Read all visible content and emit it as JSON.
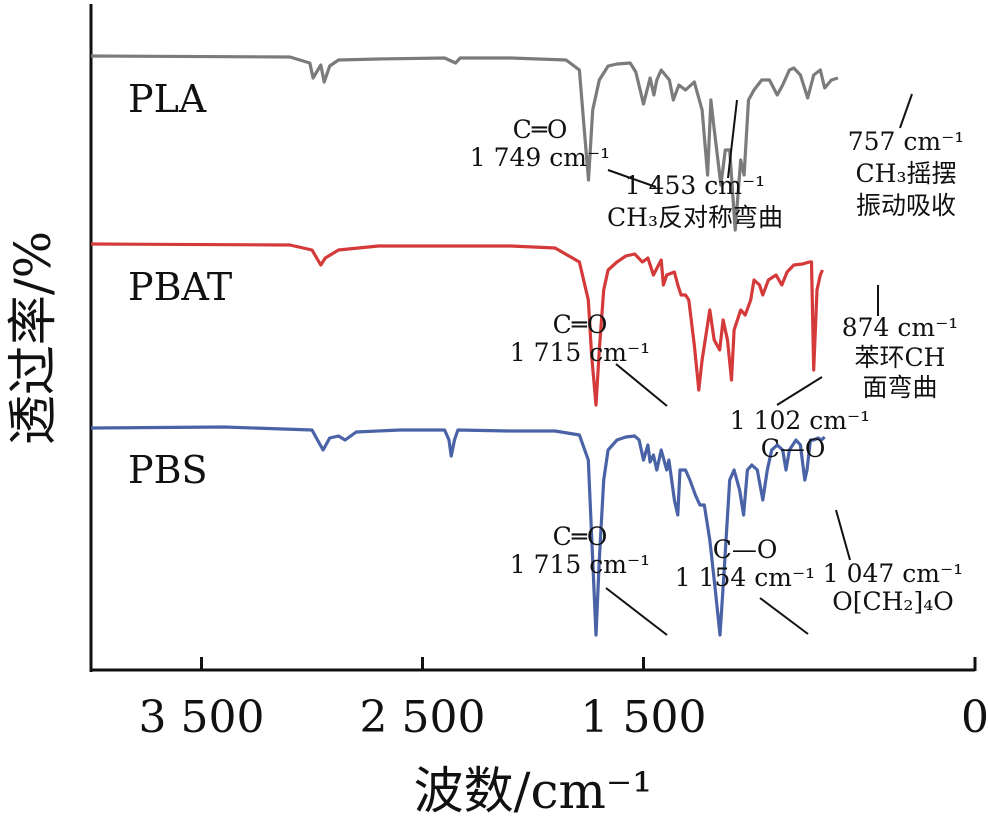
{
  "chart_data": {
    "type": "line",
    "xlabel": "波数/cm⁻¹",
    "ylabel": "透过率/%",
    "xlim": [
      4000,
      0
    ],
    "x_ticks": [
      3500,
      2500,
      1500,
      0
    ],
    "x_tick_labels": [
      "3 500",
      "2 500",
      "1 500",
      "0"
    ],
    "grid": false,
    "legend": "none",
    "series": [
      {
        "name": "PLA",
        "color": "#7b7b7b",
        "offset": 0,
        "points": [
          [
            4000,
            56
          ],
          [
            3100,
            57
          ],
          [
            3010,
            63
          ],
          [
            2995,
            78
          ],
          [
            2960,
            65
          ],
          [
            2945,
            82
          ],
          [
            2920,
            66
          ],
          [
            2880,
            60
          ],
          [
            2700,
            59
          ],
          [
            2400,
            58
          ],
          [
            2350,
            63
          ],
          [
            2330,
            58
          ],
          [
            2100,
            58
          ],
          [
            1850,
            60
          ],
          [
            1790,
            70
          ],
          [
            1768,
            130
          ],
          [
            1749,
            180
          ],
          [
            1730,
            110
          ],
          [
            1700,
            80
          ],
          [
            1660,
            66
          ],
          [
            1620,
            64
          ],
          [
            1560,
            63
          ],
          [
            1535,
            72
          ],
          [
            1500,
            104
          ],
          [
            1470,
            78
          ],
          [
            1453,
            95
          ],
          [
            1440,
            80
          ],
          [
            1420,
            70
          ],
          [
            1383,
            80
          ],
          [
            1365,
            100
          ],
          [
            1340,
            85
          ],
          [
            1310,
            90
          ],
          [
            1270,
            82
          ],
          [
            1235,
            110
          ],
          [
            1210,
            175
          ],
          [
            1195,
            100
          ],
          [
            1185,
            120
          ],
          [
            1150,
            185
          ],
          [
            1130,
            150
          ],
          [
            1110,
            150
          ],
          [
            1085,
            230
          ],
          [
            1060,
            160
          ],
          [
            1045,
            175
          ],
          [
            1025,
            100
          ],
          [
            1000,
            90
          ],
          [
            965,
            80
          ],
          [
            930,
            80
          ],
          [
            895,
            95
          ],
          [
            870,
            85
          ],
          [
            840,
            70
          ],
          [
            820,
            68
          ],
          [
            790,
            75
          ],
          [
            757,
            98
          ],
          [
            730,
            75
          ],
          [
            700,
            70
          ],
          [
            680,
            88
          ],
          [
            650,
            80
          ],
          [
            620,
            78
          ]
        ]
      },
      {
        "name": "PBAT",
        "color": "#d53a3a",
        "offset": 0,
        "points": [
          [
            4000,
            244
          ],
          [
            3100,
            245
          ],
          [
            3000,
            250
          ],
          [
            2960,
            265
          ],
          [
            2940,
            258
          ],
          [
            2880,
            250
          ],
          [
            2700,
            246
          ],
          [
            2400,
            246
          ],
          [
            2100,
            246
          ],
          [
            1900,
            248
          ],
          [
            1790,
            262
          ],
          [
            1750,
            300
          ],
          [
            1735,
            355
          ],
          [
            1715,
            405
          ],
          [
            1700,
            350
          ],
          [
            1680,
            290
          ],
          [
            1660,
            270
          ],
          [
            1620,
            262
          ],
          [
            1580,
            256
          ],
          [
            1540,
            254
          ],
          [
            1505,
            262
          ],
          [
            1480,
            258
          ],
          [
            1455,
            275
          ],
          [
            1420,
            260
          ],
          [
            1410,
            285
          ],
          [
            1395,
            275
          ],
          [
            1360,
            272
          ],
          [
            1345,
            285
          ],
          [
            1330,
            295
          ],
          [
            1310,
            295
          ],
          [
            1295,
            300
          ],
          [
            1270,
            345
          ],
          [
            1250,
            390
          ],
          [
            1235,
            360
          ],
          [
            1200,
            310
          ],
          [
            1180,
            340
          ],
          [
            1155,
            350
          ],
          [
            1140,
            320
          ],
          [
            1120,
            340
          ],
          [
            1102,
            380
          ],
          [
            1090,
            330
          ],
          [
            1060,
            310
          ],
          [
            1040,
            315
          ],
          [
            1015,
            300
          ],
          [
            1000,
            280
          ],
          [
            975,
            285
          ],
          [
            960,
            295
          ],
          [
            935,
            280
          ],
          [
            900,
            275
          ],
          [
            874,
            285
          ],
          [
            850,
            272
          ],
          [
            820,
            265
          ],
          [
            780,
            264
          ],
          [
            750,
            262
          ],
          [
            740,
            262
          ],
          [
            730,
            370
          ],
          [
            715,
            290
          ],
          [
            700,
            275
          ],
          [
            690,
            270
          ]
        ]
      },
      {
        "name": "PBS",
        "color": "#4a63a6",
        "offset": 0,
        "points": [
          [
            4000,
            428
          ],
          [
            3400,
            427
          ],
          [
            3000,
            430
          ],
          [
            2975,
            440
          ],
          [
            2950,
            450
          ],
          [
            2920,
            438
          ],
          [
            2880,
            436
          ],
          [
            2850,
            440
          ],
          [
            2800,
            432
          ],
          [
            2600,
            430
          ],
          [
            2400,
            430
          ],
          [
            2380,
            440
          ],
          [
            2370,
            456
          ],
          [
            2355,
            440
          ],
          [
            2340,
            430
          ],
          [
            2100,
            431
          ],
          [
            1900,
            431
          ],
          [
            1790,
            435
          ],
          [
            1750,
            460
          ],
          [
            1730,
            560
          ],
          [
            1715,
            635
          ],
          [
            1700,
            560
          ],
          [
            1680,
            480
          ],
          [
            1660,
            450
          ],
          [
            1620,
            440
          ],
          [
            1580,
            437
          ],
          [
            1540,
            436
          ],
          [
            1520,
            440
          ],
          [
            1500,
            460
          ],
          [
            1480,
            445
          ],
          [
            1470,
            462
          ],
          [
            1455,
            455
          ],
          [
            1440,
            470
          ],
          [
            1420,
            450
          ],
          [
            1395,
            470
          ],
          [
            1385,
            460
          ],
          [
            1360,
            500
          ],
          [
            1345,
            515
          ],
          [
            1335,
            470
          ],
          [
            1310,
            470
          ],
          [
            1290,
            480
          ],
          [
            1265,
            495
          ],
          [
            1245,
            505
          ],
          [
            1225,
            505
          ],
          [
            1200,
            540
          ],
          [
            1175,
            590
          ],
          [
            1154,
            635
          ],
          [
            1135,
            570
          ],
          [
            1110,
            480
          ],
          [
            1090,
            470
          ],
          [
            1065,
            490
          ],
          [
            1047,
            515
          ],
          [
            1030,
            470
          ],
          [
            1010,
            465
          ],
          [
            985,
            470
          ],
          [
            960,
            500
          ],
          [
            940,
            470
          ],
          [
            920,
            450
          ],
          [
            895,
            445
          ],
          [
            870,
            450
          ],
          [
            855,
            470
          ],
          [
            840,
            450
          ],
          [
            810,
            440
          ],
          [
            790,
            445
          ],
          [
            770,
            480
          ],
          [
            760,
            470
          ],
          [
            745,
            440
          ],
          [
            730,
            440
          ],
          [
            710,
            438
          ],
          [
            695,
            440
          ],
          [
            680,
            437
          ]
        ]
      }
    ],
    "labels": [
      {
        "text": "PLA",
        "x": 128,
        "y": 112,
        "size": 38
      },
      {
        "text": "PBAT",
        "x": 128,
        "y": 300,
        "size": 38
      },
      {
        "text": "PBS",
        "x": 128,
        "y": 483,
        "size": 38
      }
    ],
    "annotations": [
      {
        "lines": [
          "C═O",
          "1 749 cm⁻¹"
        ],
        "at": 1749,
        "curve": "PLA"
      },
      {
        "lines": [
          "1 453 cm⁻¹",
          "CH₃反对称弯曲"
        ],
        "at": 1453,
        "curve": "PLA"
      },
      {
        "lines": [
          "757 cm⁻¹",
          "CH₃摇摆",
          "振动吸收"
        ],
        "at": 757,
        "curve": "PLA"
      },
      {
        "lines": [
          "C═O",
          "1 715 cm⁻¹"
        ],
        "at": 1715,
        "curve": "PBAT"
      },
      {
        "lines": [
          "1 102 cm⁻¹"
        ],
        "at": 1102,
        "curve": "PBAT"
      },
      {
        "lines": [
          "874 cm⁻¹",
          "苯环CH",
          "面弯曲"
        ],
        "at": 874,
        "curve": "PBAT"
      },
      {
        "lines": [
          "C═O",
          "1 715 cm⁻¹"
        ],
        "at": 1715,
        "curve": "PBS"
      },
      {
        "lines": [
          "C—O",
          "1 154 cm⁻¹"
        ],
        "at": 1154,
        "curve": "PBS"
      },
      {
        "lines": [
          "C—O"
        ],
        "at": 1102,
        "curve": "PBS"
      },
      {
        "lines": [
          "1 047 cm⁻¹",
          "O[CH₂]₄O"
        ],
        "at": 1047,
        "curve": "PBS"
      }
    ]
  }
}
